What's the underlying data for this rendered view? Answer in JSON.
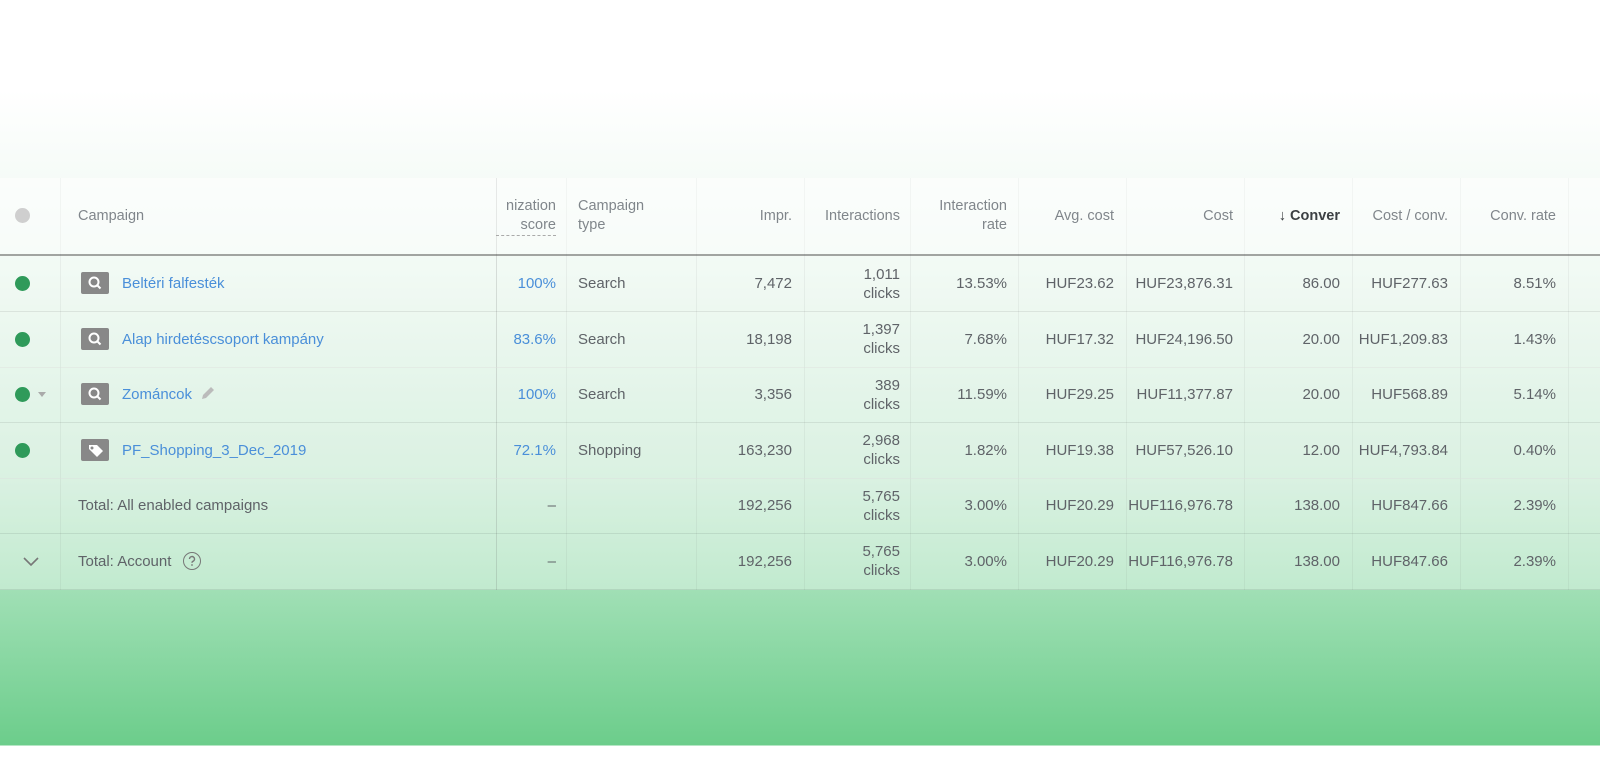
{
  "table": {
    "headers": [
      "Campaign",
      "nization score",
      "Campaign type",
      "Impr.",
      "Interactions",
      "Interaction rate",
      "Avg. cost",
      "Cost",
      "Conver",
      "Cost / conv.",
      "Conv. rate"
    ],
    "rows": [
      {
        "campaign": "Beltéri falfesték",
        "icon": "search",
        "cells": [
          "100%",
          "Search",
          "7,472",
          "1,011 clicks",
          "13.53%",
          "HUF23.62",
          "HUF23,876.31",
          "86.00",
          "HUF277.63",
          "8.51%"
        ]
      },
      {
        "campaign": "Alap hirdetéscsoport kampány",
        "icon": "search",
        "cells": [
          "83.6%",
          "Search",
          "18,198",
          "1,397 clicks",
          "7.68%",
          "HUF17.32",
          "HUF24,196.50",
          "20.00",
          "HUF1,209.83",
          "1.43%"
        ]
      },
      {
        "campaign": "Zománcok",
        "icon": "search",
        "cells": [
          "100%",
          "Search",
          "3,356",
          "389 clicks",
          "11.59%",
          "HUF29.25",
          "HUF11,377.87",
          "20.00",
          "HUF568.89",
          "5.14%"
        ]
      },
      {
        "campaign": "PF_Shopping_3_Dec_2019",
        "icon": "shopping",
        "cells": [
          "72.1%",
          "Shopping",
          "163,230",
          "2,968 clicks",
          "1.82%",
          "HUF19.38",
          "HUF57,526.10",
          "12.00",
          "HUF4,793.84",
          "0.40%"
        ]
      },
      {
        "campaign": "Total: All enabled campaigns",
        "cells": [
          "–",
          null,
          "192,256",
          "5,765 clicks",
          "3.00%",
          "HUF20.29",
          "HUF116,976.78",
          "138.00",
          "HUF847.66",
          "2.39%"
        ]
      },
      {
        "campaign": "Total: Account",
        "cells": [
          "–",
          null,
          "192,256",
          "5,765 clicks",
          "3.00%",
          "HUF20.29",
          "HUF116,976.78",
          "138.00",
          "HUF847.66",
          "2.39%"
        ]
      }
    ]
  }
}
